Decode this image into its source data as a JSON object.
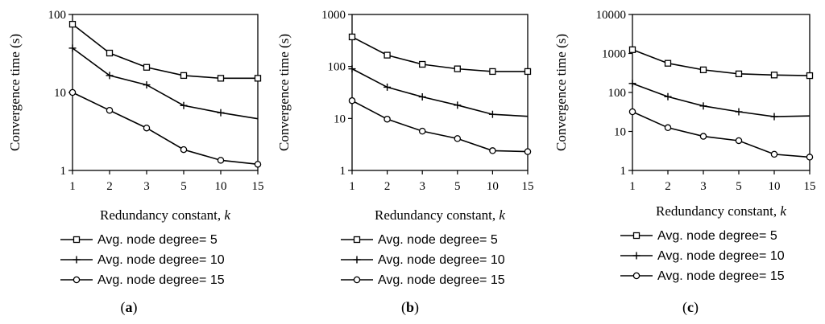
{
  "chart_data": [
    {
      "type": "line",
      "panel_label": "a",
      "xlabel": "Redundancy constant, ",
      "xlabel_var": "k",
      "ylabel": "Convergence time (s)",
      "y_scale": "log",
      "ylim": [
        1,
        100
      ],
      "y_ticks": [
        "1",
        "10",
        "100"
      ],
      "categories": [
        "1",
        "2",
        "3",
        "5",
        "10",
        "15"
      ],
      "grid": false,
      "legend_position": "below",
      "series": [
        {
          "name": "Avg. node degree= 5",
          "marker": "square",
          "values": [
            75,
            32,
            21,
            16.5,
            15.2,
            15.2
          ]
        },
        {
          "name": "Avg. node degree= 10",
          "marker": "plus",
          "values": [
            37,
            16.5,
            12.5,
            6.8,
            5.5,
            4.6
          ]
        },
        {
          "name": "Avg. node degree= 15",
          "marker": "circle",
          "values": [
            10,
            5.9,
            3.5,
            1.85,
            1.35,
            1.2
          ]
        }
      ]
    },
    {
      "type": "line",
      "panel_label": "b",
      "xlabel": "Redundancy constant, ",
      "xlabel_var": "k",
      "ylabel": "Convergence time (s)",
      "y_scale": "log",
      "ylim": [
        1,
        1000
      ],
      "y_ticks": [
        "1",
        "10",
        "100",
        "1000"
      ],
      "categories": [
        "1",
        "2",
        "3",
        "5",
        "10",
        "15"
      ],
      "grid": false,
      "legend_position": "below",
      "series": [
        {
          "name": "Avg. node degree= 5",
          "marker": "square",
          "values": [
            370,
            165,
            110,
            90,
            80,
            80
          ]
        },
        {
          "name": "Avg. node degree= 10",
          "marker": "plus",
          "values": [
            90,
            40,
            26,
            18,
            12,
            11
          ]
        },
        {
          "name": "Avg. node degree= 15",
          "marker": "circle",
          "values": [
            22,
            9.7,
            5.7,
            4.1,
            2.4,
            2.3
          ]
        }
      ]
    },
    {
      "type": "line",
      "panel_label": "c",
      "xlabel": "Redundancy constant, ",
      "xlabel_var": "k",
      "ylabel": "Convergence time (s)",
      "y_scale": "log",
      "ylim": [
        1,
        10000
      ],
      "y_ticks": [
        "1",
        "10",
        "100",
        "1000",
        "10000"
      ],
      "categories": [
        "1",
        "2",
        "3",
        "5",
        "10",
        "15"
      ],
      "grid": false,
      "legend_position": "below",
      "series": [
        {
          "name": "Avg. node degree= 5",
          "marker": "square",
          "values": [
            1250,
            560,
            380,
            300,
            280,
            270
          ]
        },
        {
          "name": "Avg. node degree= 10",
          "marker": "plus",
          "values": [
            170,
            78,
            45,
            32,
            24,
            25
          ]
        },
        {
          "name": "Avg. node degree= 15",
          "marker": "circle",
          "values": [
            32,
            12.5,
            7.5,
            5.8,
            2.6,
            2.2
          ]
        }
      ]
    }
  ]
}
